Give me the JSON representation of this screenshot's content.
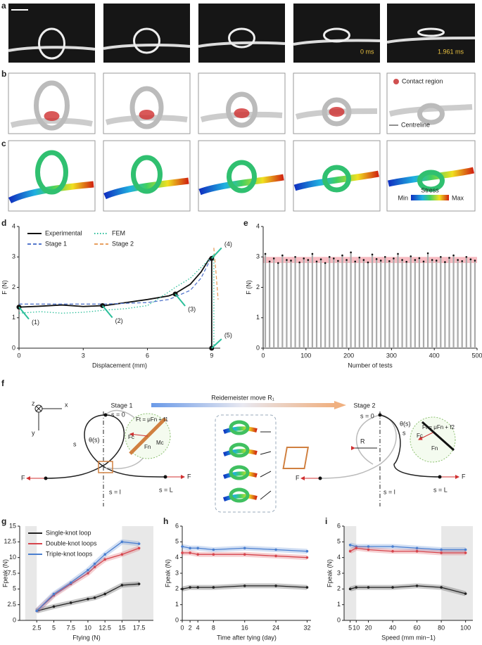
{
  "panel_letters": [
    "a",
    "b",
    "c",
    "d",
    "e",
    "f",
    "g",
    "h",
    "i"
  ],
  "panel_a": {
    "timestamps": [
      "0 ms",
      "1.961 ms"
    ]
  },
  "panel_b": {
    "legend": [
      "Contact region",
      "Centreline"
    ]
  },
  "panel_c": {
    "colorbar": {
      "title": "Stress",
      "min": "Min",
      "max": "Max"
    }
  },
  "panel_f": {
    "texts": [
      "Stage 1",
      "Reidemeister move R₁",
      "Stage 2",
      "z",
      "x",
      "y",
      "s = 0",
      "s",
      "θ(s)",
      "F",
      "F",
      "s = l",
      "s = L",
      "Ft = μFn + f1",
      "Fc",
      "Fn",
      "Mc",
      "s = 0",
      "θ(s)",
      "s",
      "R",
      "Ft = μFn + f2",
      "Fc",
      "Fn",
      "F",
      "F",
      "s = l",
      "s = L"
    ]
  },
  "chart_data": [
    {
      "type": "line",
      "xlabel": "Displacement (mm)",
      "ylabel": "F (N)",
      "xlim": [
        0,
        9.4
      ],
      "xticks": [
        0,
        3,
        6,
        9
      ],
      "ylim": [
        0,
        4
      ],
      "yticks": [
        0,
        1,
        2,
        3,
        4
      ],
      "legend": "upper left",
      "series": [
        {
          "name": "Experimental",
          "color": "#111111",
          "style": "solid",
          "x": [
            0,
            1,
            2,
            3,
            4,
            5,
            6,
            7,
            7.3,
            8,
            8.5,
            8.9,
            9,
            9
          ],
          "values": [
            1.35,
            1.38,
            1.42,
            1.37,
            1.4,
            1.5,
            1.6,
            1.72,
            1.8,
            2.1,
            2.5,
            2.95,
            2.95,
            0
          ]
        },
        {
          "name": "FEM",
          "color": "#2bbf9a",
          "style": "dotted",
          "x": [
            0,
            1,
            2,
            3,
            4,
            5,
            6,
            7,
            7.3,
            8,
            9,
            9.1,
            9.1
          ],
          "values": [
            1.15,
            1.2,
            1.15,
            1.18,
            1.25,
            1.3,
            1.4,
            1.85,
            2.0,
            2.3,
            3.0,
            3.1,
            0.1
          ]
        },
        {
          "name": "Stage 1",
          "color": "#5577cc",
          "style": "dashed",
          "x": [
            0,
            2,
            4,
            6,
            7,
            8,
            8.5,
            9
          ],
          "values": [
            1.45,
            1.45,
            1.45,
            1.5,
            1.6,
            1.9,
            2.3,
            3.0
          ]
        },
        {
          "name": "Stage 2",
          "color": "#e8a060",
          "style": "dashed",
          "x": [
            9.1,
            9.2,
            9.3
          ],
          "values": [
            3.3,
            2.5,
            1.6
          ]
        }
      ],
      "annotations": [
        {
          "text": "(1)",
          "x": 0,
          "y": 1.35
        },
        {
          "text": "(2)",
          "x": 3.9,
          "y": 1.4
        },
        {
          "text": "(3)",
          "x": 7.3,
          "y": 1.78
        },
        {
          "text": "(4)",
          "x": 9,
          "y": 2.95
        },
        {
          "text": "(5)",
          "x": 9,
          "y": 0
        }
      ]
    },
    {
      "type": "scatter",
      "xlabel": "Number of tests",
      "ylabel": "F (N)",
      "xlim": [
        0,
        500
      ],
      "xticks": [
        0,
        100,
        200,
        300,
        400,
        500
      ],
      "ylim": [
        0,
        4
      ],
      "yticks": [
        0,
        1,
        2,
        3,
        4
      ],
      "highlight_range": [
        2.8,
        3.0
      ],
      "highlight_color": "#f4a0a8",
      "series": [
        {
          "color": "#111111",
          "x": [
            5,
            15,
            25,
            35,
            45,
            55,
            65,
            75,
            85,
            95,
            105,
            115,
            125,
            135,
            145,
            155,
            165,
            175,
            185,
            195,
            205,
            215,
            225,
            235,
            245,
            255,
            265,
            275,
            285,
            295,
            305,
            315,
            325,
            335,
            345,
            355,
            365,
            375,
            385,
            395,
            405,
            415,
            425,
            435,
            445,
            455,
            465,
            475,
            485,
            495
          ],
          "values": [
            3.1,
            2.85,
            2.95,
            2.8,
            3.05,
            2.9,
            2.88,
            3.0,
            2.82,
            2.95,
            2.9,
            3.1,
            2.85,
            2.92,
            2.8,
            3.0,
            2.95,
            2.87,
            3.05,
            2.9,
            3.15,
            2.85,
            2.98,
            2.9,
            2.82,
            3.08,
            2.93,
            2.88,
            3.0,
            2.86,
            2.95,
            3.1,
            2.9,
            2.84,
            3.02,
            2.9,
            2.96,
            2.85,
            3.12,
            2.9,
            2.88,
            3.0,
            2.83,
            2.97,
            3.05,
            2.9,
            2.86,
            3.0,
            2.92,
            2.88
          ]
        }
      ]
    },
    {
      "type": "line",
      "xlabel": "Ftying (N)",
      "ylabel": "Fpeak (N)",
      "markers": true,
      "legend": "upper left",
      "xlim": [
        0,
        19.6
      ],
      "xticks": [
        2.5,
        5,
        7.5,
        10,
        12.5,
        15,
        17.5
      ],
      "ylim": [
        0,
        15
      ],
      "yticks": [
        0,
        2.5,
        5,
        7.5,
        10,
        12.5,
        15
      ],
      "shaded": [
        [
          0.8,
          2.5
        ],
        [
          15,
          19.6
        ]
      ],
      "series": [
        {
          "name": "Single-knot loop",
          "color": "#222222",
          "x": [
            2.5,
            5,
            7.5,
            10,
            11,
            12.5,
            15,
            17.5
          ],
          "values": [
            1.5,
            2.2,
            2.8,
            3.4,
            3.6,
            4.2,
            5.6,
            5.8
          ]
        },
        {
          "name": "Double-knot loops",
          "color": "#d6454d",
          "x": [
            2.5,
            5,
            7.5,
            10,
            11,
            12.5,
            15,
            17.5
          ],
          "values": [
            1.5,
            4,
            5.8,
            7.5,
            8.5,
            9.7,
            10.5,
            11.5
          ]
        },
        {
          "name": "Triple-knot loops",
          "color": "#4a7fd0",
          "x": [
            2.5,
            5,
            7.5,
            10,
            11,
            12.5,
            15,
            17.5
          ],
          "values": [
            1.5,
            4.2,
            6,
            8,
            9,
            10.5,
            12.5,
            12.2
          ]
        }
      ]
    },
    {
      "type": "line",
      "xlabel": "Time after tying (day)",
      "ylabel": "Fpeak (N)",
      "markers": true,
      "xlim": [
        0,
        33
      ],
      "xticks": [
        0,
        2,
        4,
        8,
        16,
        24,
        32
      ],
      "ylim": [
        0,
        6
      ],
      "yticks": [
        0,
        1,
        2,
        3,
        4,
        5,
        6
      ],
      "series": [
        {
          "color": "#4a7fd0",
          "x": [
            0,
            2,
            4,
            8,
            16,
            24,
            32
          ],
          "values": [
            4.7,
            4.6,
            4.6,
            4.5,
            4.6,
            4.5,
            4.4
          ]
        },
        {
          "color": "#d6454d",
          "x": [
            0,
            2,
            4,
            8,
            16,
            24,
            32
          ],
          "values": [
            4.3,
            4.3,
            4.2,
            4.2,
            4.2,
            4.1,
            4.0
          ]
        },
        {
          "color": "#222222",
          "x": [
            0,
            2,
            4,
            8,
            16,
            24,
            32
          ],
          "values": [
            2.0,
            2.1,
            2.1,
            2.1,
            2.2,
            2.2,
            2.1
          ]
        }
      ]
    },
    {
      "type": "line",
      "xlabel": "Speed (mm min−1)",
      "ylabel": "Fpeak (N)",
      "markers": true,
      "xlim": [
        0,
        106
      ],
      "xticks": [
        5,
        10,
        20,
        40,
        60,
        80,
        100
      ],
      "ylim": [
        0,
        6
      ],
      "yticks": [
        0,
        1,
        2,
        3,
        4,
        5,
        6
      ],
      "shaded": [
        [
          0,
          10
        ],
        [
          80,
          106
        ]
      ],
      "series": [
        {
          "color": "#4a7fd0",
          "x": [
            5,
            10,
            20,
            40,
            60,
            80,
            100
          ],
          "values": [
            4.8,
            4.7,
            4.7,
            4.7,
            4.6,
            4.5,
            4.5
          ]
        },
        {
          "color": "#d6454d",
          "x": [
            5,
            10,
            20,
            40,
            60,
            80,
            100
          ],
          "values": [
            4.4,
            4.6,
            4.5,
            4.4,
            4.4,
            4.3,
            4.3
          ]
        },
        {
          "color": "#222222",
          "x": [
            5,
            10,
            20,
            40,
            60,
            80,
            100
          ],
          "values": [
            2.0,
            2.1,
            2.1,
            2.1,
            2.2,
            2.1,
            1.7
          ]
        }
      ]
    }
  ]
}
